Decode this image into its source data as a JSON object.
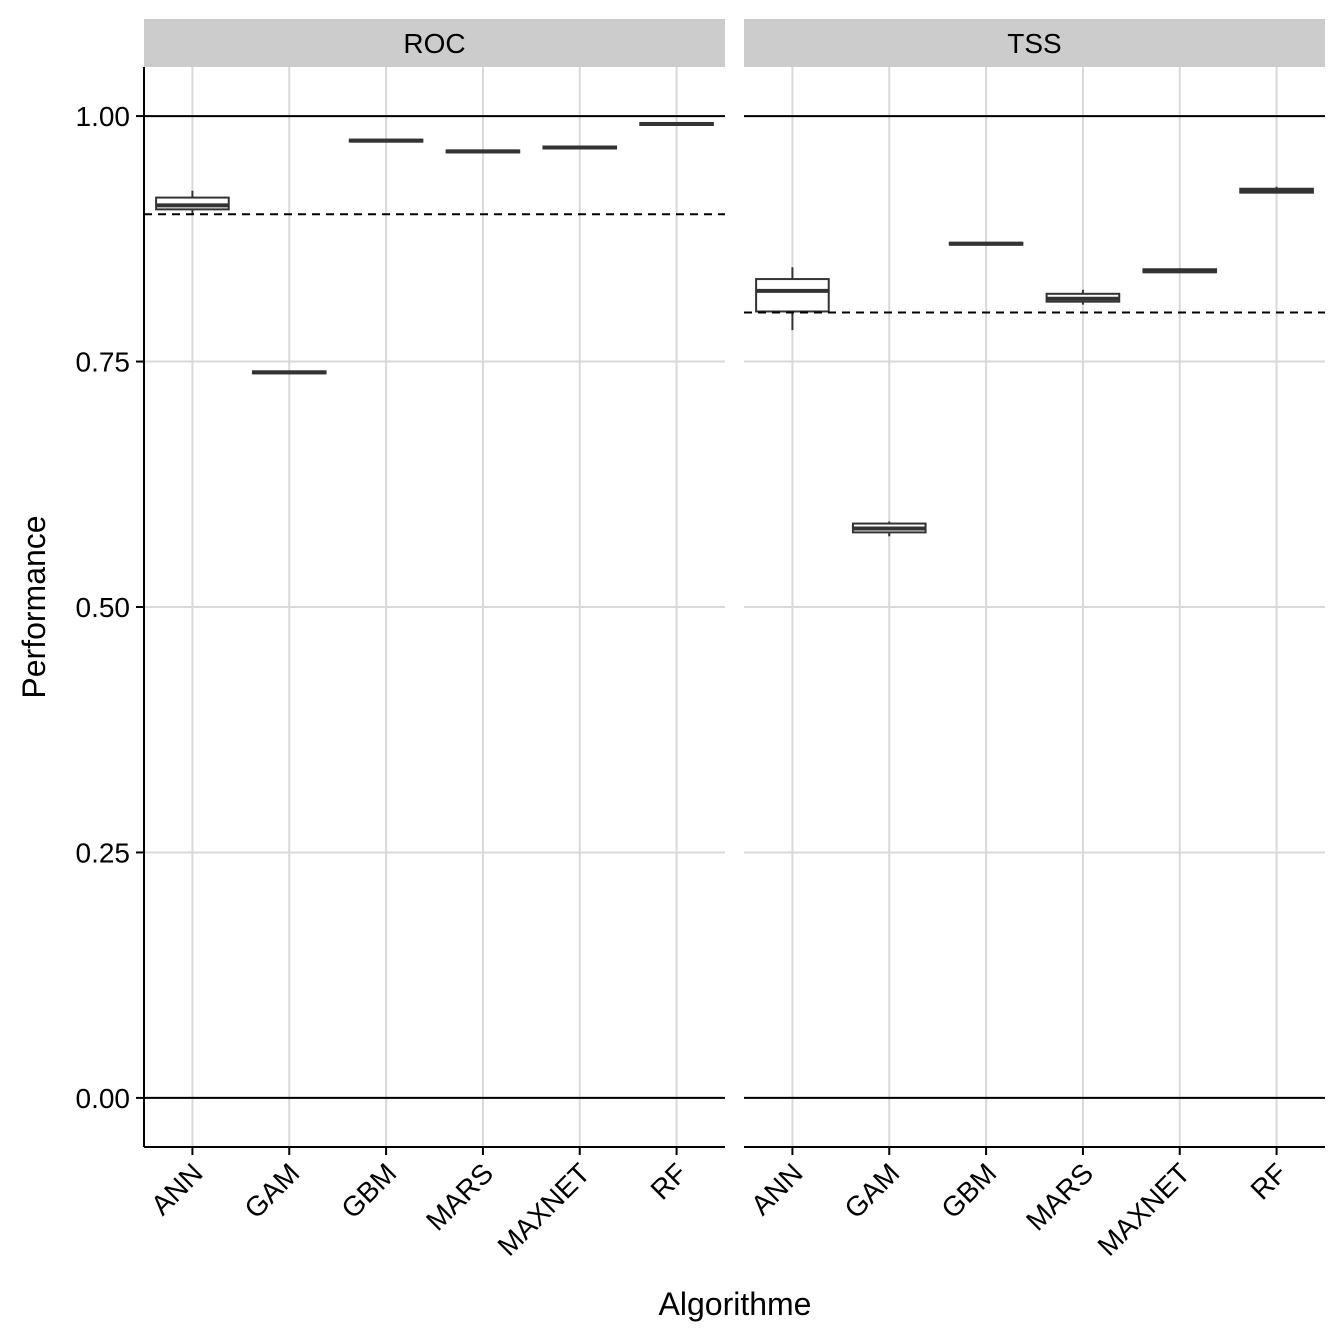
{
  "chart_data": {
    "type": "boxplot",
    "xlabel": "Algorithme",
    "ylabel": "Performance",
    "ylim": [
      -0.05,
      1.05
    ],
    "yticks": [
      0.0,
      0.25,
      0.5,
      0.75,
      1.0
    ],
    "ytick_labels": [
      "0.00",
      "0.25",
      "0.50",
      "0.75",
      "1.00"
    ],
    "categories": [
      "ANN",
      "GAM",
      "GBM",
      "MARS",
      "MAXNET",
      "RF"
    ],
    "grid": true,
    "reference_lines_solid": [
      0.0,
      1.0
    ],
    "colors": {
      "strip": "#cccccc",
      "grid": "#d9d9d9",
      "box": "#333333"
    },
    "panels": [
      {
        "strip_label": "ROC",
        "threshold": 0.9,
        "boxes": [
          {
            "category": "ANN",
            "min": 0.9,
            "q1": 0.905,
            "median": 0.909,
            "q3": 0.917,
            "max": 0.924
          },
          {
            "category": "GAM",
            "min": 0.738,
            "q1": 0.738,
            "median": 0.739,
            "q3": 0.74,
            "max": 0.74
          },
          {
            "category": "GBM",
            "min": 0.974,
            "q1": 0.974,
            "median": 0.975,
            "q3": 0.976,
            "max": 0.976
          },
          {
            "category": "MARS",
            "min": 0.963,
            "q1": 0.963,
            "median": 0.964,
            "q3": 0.965,
            "max": 0.965
          },
          {
            "category": "MAXNET",
            "min": 0.967,
            "q1": 0.967,
            "median": 0.968,
            "q3": 0.969,
            "max": 0.969
          },
          {
            "category": "RF",
            "min": 0.991,
            "q1": 0.991,
            "median": 0.992,
            "q3": 0.993,
            "max": 0.993
          }
        ]
      },
      {
        "strip_label": "TSS",
        "threshold": 0.8,
        "boxes": [
          {
            "category": "ANN",
            "min": 0.782,
            "q1": 0.801,
            "median": 0.822,
            "q3": 0.834,
            "max": 0.846
          },
          {
            "category": "GAM",
            "min": 0.572,
            "q1": 0.576,
            "median": 0.58,
            "q3": 0.585,
            "max": 0.587
          },
          {
            "category": "GBM",
            "min": 0.869,
            "q1": 0.869,
            "median": 0.87,
            "q3": 0.871,
            "max": 0.871
          },
          {
            "category": "MARS",
            "min": 0.808,
            "q1": 0.811,
            "median": 0.814,
            "q3": 0.819,
            "max": 0.823
          },
          {
            "category": "MAXNET",
            "min": 0.841,
            "q1": 0.841,
            "median": 0.842,
            "q3": 0.844,
            "max": 0.845
          },
          {
            "category": "RF",
            "min": 0.922,
            "q1": 0.922,
            "median": 0.924,
            "q3": 0.926,
            "max": 0.928
          }
        ]
      }
    ]
  }
}
